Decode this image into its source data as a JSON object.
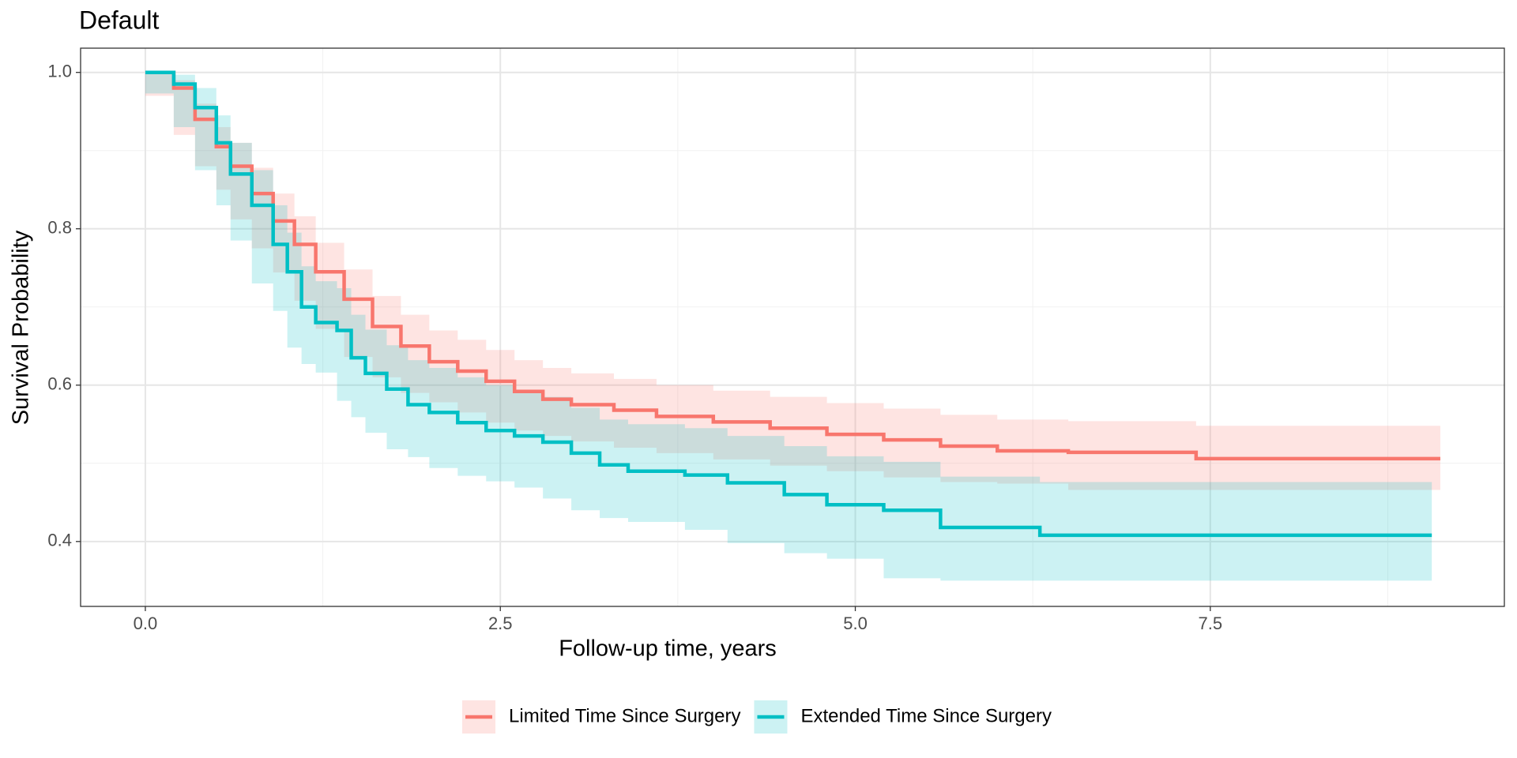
{
  "chart_data": {
    "type": "survival",
    "title": "Default",
    "x_label": "Follow-up time, years",
    "y_label": "Survival Probability",
    "xlim": [
      -0.456,
      9.571
    ],
    "ylim": [
      0.317,
      1.031
    ],
    "xticks": [
      {
        "value": 0,
        "label": "0.0"
      },
      {
        "value": 2.5,
        "label": "2.5"
      },
      {
        "value": 5,
        "label": "5.0"
      },
      {
        "value": 7.5,
        "label": "7.5"
      }
    ],
    "yticks": [
      0.4,
      0.6,
      0.8,
      {
        "value": 1,
        "label": "1.0"
      }
    ],
    "x_minor_grid": [
      1.25,
      3.75,
      6.25,
      8.75
    ],
    "y_minor_grid": [
      0.5,
      0.7,
      0.9
    ],
    "grid": true,
    "legend_position": "bottom",
    "series": [
      {
        "name": "Limited Time Since Surgery",
        "color": "#F8766D",
        "x": [
          0,
          0.2,
          0.35,
          0.5,
          0.6,
          0.75,
          0.9,
          1.05,
          1.2,
          1.4,
          1.6,
          1.8,
          2.0,
          2.2,
          2.4,
          2.6,
          2.8,
          3.0,
          3.3,
          3.6,
          4.0,
          4.4,
          4.8,
          5.2,
          5.6,
          6.0,
          6.5,
          7.4,
          9.12
        ],
        "values": [
          1.0,
          0.98,
          0.94,
          0.905,
          0.88,
          0.845,
          0.81,
          0.78,
          0.745,
          0.71,
          0.675,
          0.65,
          0.63,
          0.618,
          0.605,
          0.592,
          0.582,
          0.575,
          0.568,
          0.56,
          0.553,
          0.545,
          0.537,
          0.53,
          0.522,
          0.516,
          0.514,
          0.506,
          0.506
        ],
        "upper": [
          1.0,
          0.99,
          0.96,
          0.93,
          0.91,
          0.878,
          0.845,
          0.816,
          0.782,
          0.748,
          0.714,
          0.69,
          0.67,
          0.658,
          0.645,
          0.632,
          0.622,
          0.615,
          0.608,
          0.6,
          0.593,
          0.585,
          0.577,
          0.57,
          0.562,
          0.556,
          0.554,
          0.548,
          0.548
        ],
        "lower": [
          1.0,
          0.97,
          0.92,
          0.88,
          0.85,
          0.812,
          0.775,
          0.744,
          0.708,
          0.672,
          0.636,
          0.61,
          0.59,
          0.578,
          0.565,
          0.552,
          0.542,
          0.535,
          0.528,
          0.52,
          0.513,
          0.505,
          0.497,
          0.49,
          0.482,
          0.476,
          0.474,
          0.466,
          0.466
        ]
      },
      {
        "name": "Extended Time Since Surgery",
        "color": "#00BFC4",
        "x": [
          0,
          0.2,
          0.35,
          0.5,
          0.6,
          0.75,
          0.9,
          1.0,
          1.1,
          1.2,
          1.35,
          1.45,
          1.55,
          1.7,
          1.85,
          2.0,
          2.2,
          2.4,
          2.6,
          2.8,
          3.0,
          3.2,
          3.4,
          3.8,
          4.1,
          4.5,
          4.8,
          5.2,
          5.6,
          6.3,
          9.06
        ],
        "values": [
          1.0,
          0.985,
          0.955,
          0.91,
          0.87,
          0.83,
          0.78,
          0.745,
          0.7,
          0.68,
          0.67,
          0.635,
          0.615,
          0.595,
          0.575,
          0.565,
          0.552,
          0.542,
          0.535,
          0.527,
          0.513,
          0.498,
          0.49,
          0.485,
          0.475,
          0.46,
          0.447,
          0.44,
          0.418,
          0.408,
          0.408
        ],
        "upper": [
          1.0,
          0.997,
          0.98,
          0.945,
          0.91,
          0.875,
          0.83,
          0.795,
          0.752,
          0.733,
          0.724,
          0.69,
          0.671,
          0.651,
          0.632,
          0.622,
          0.61,
          0.6,
          0.593,
          0.585,
          0.571,
          0.556,
          0.55,
          0.545,
          0.535,
          0.522,
          0.509,
          0.502,
          0.483,
          0.476,
          0.476
        ],
        "lower": [
          1.0,
          0.973,
          0.93,
          0.875,
          0.83,
          0.785,
          0.73,
          0.695,
          0.648,
          0.627,
          0.616,
          0.58,
          0.559,
          0.539,
          0.518,
          0.508,
          0.494,
          0.484,
          0.477,
          0.469,
          0.455,
          0.44,
          0.43,
          0.425,
          0.415,
          0.398,
          0.385,
          0.378,
          0.353,
          0.35,
          0.35
        ]
      }
    ]
  }
}
